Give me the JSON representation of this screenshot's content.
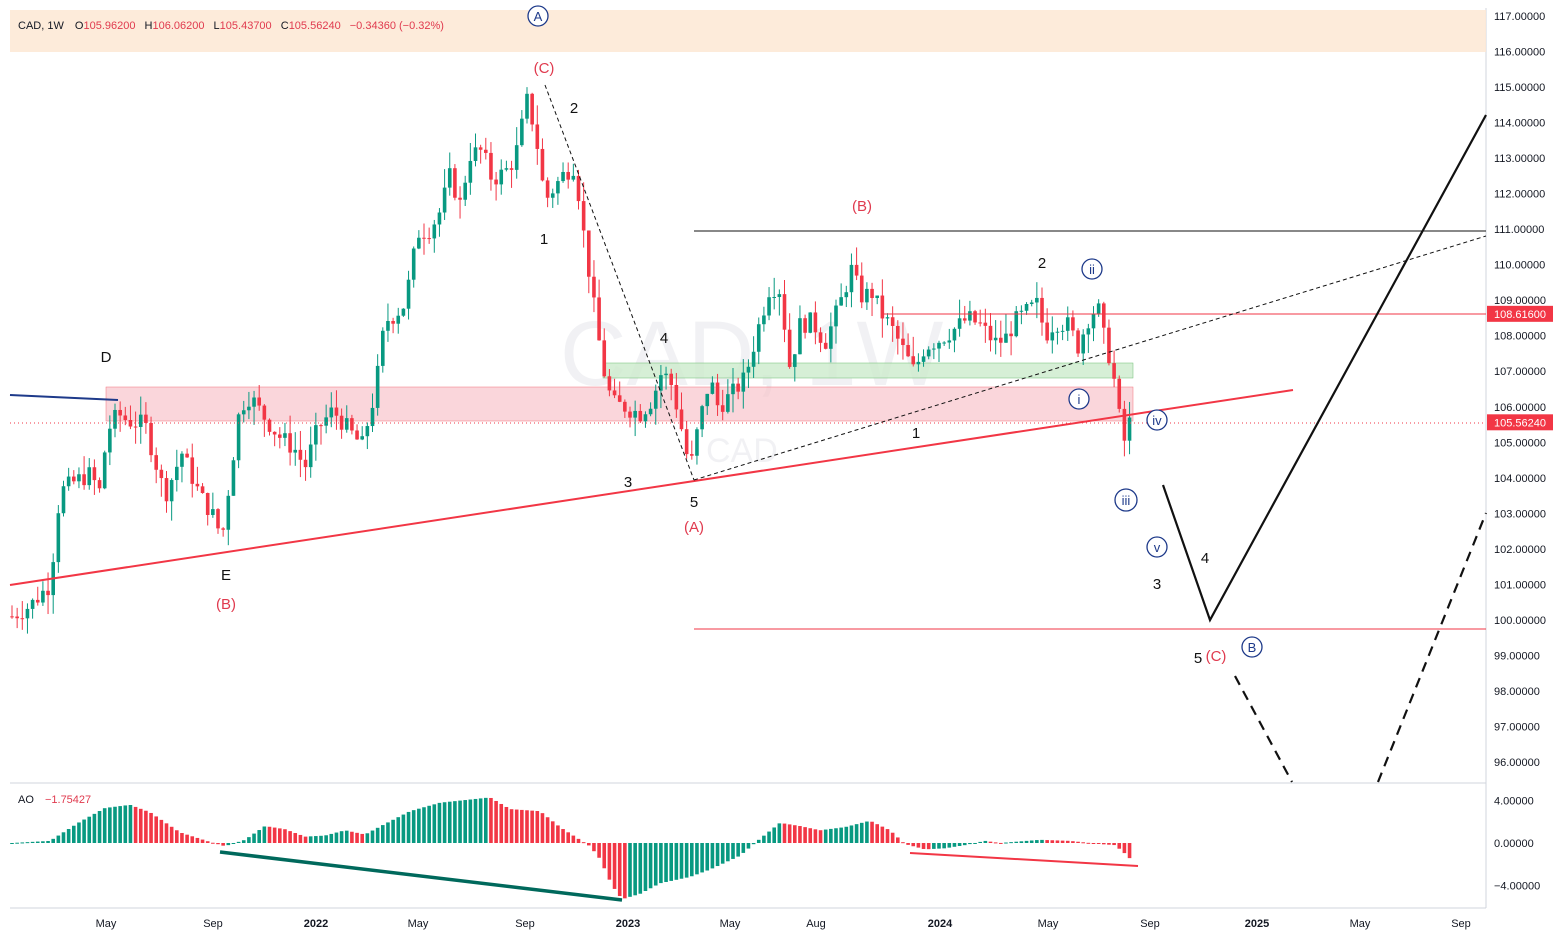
{
  "header": {
    "symbol": "CAD, 1W",
    "o_label": "O",
    "o_value": "105.96200",
    "h_label": "H",
    "h_value": "106.06200",
    "l_label": "L",
    "l_value": "105.43700",
    "c_label": "C",
    "c_value": "105.56240",
    "change": "−0.34360 (−0.32%)"
  },
  "watermark": "CAD, 1W",
  "watermark_small": "CAD",
  "ao": {
    "label": "AO",
    "value": "−1.75427"
  },
  "chart_data": {
    "type": "candlestick",
    "price_axis": {
      "labels": [
        "117.00000",
        "116.00000",
        "115.00000",
        "114.00000",
        "113.00000",
        "112.00000",
        "111.00000",
        "110.00000",
        "109.00000",
        "108.00000",
        "107.00000",
        "106.00000",
        "105.00000",
        "104.00000",
        "103.00000",
        "102.00000",
        "101.00000",
        "100.00000",
        "99.00000",
        "98.00000",
        "97.00000",
        "96.00000"
      ],
      "range": [
        95.6,
        117.3
      ]
    },
    "time_axis": {
      "labels": [
        {
          "text": "May",
          "bold": false
        },
        {
          "text": "Sep",
          "bold": false
        },
        {
          "text": "2022",
          "bold": true
        },
        {
          "text": "May",
          "bold": false
        },
        {
          "text": "Sep",
          "bold": false
        },
        {
          "text": "2023",
          "bold": true
        },
        {
          "text": "May",
          "bold": false
        },
        {
          "text": "Aug",
          "bold": false
        },
        {
          "text": "2024",
          "bold": true
        },
        {
          "text": "May",
          "bold": false
        },
        {
          "text": "Sep",
          "bold": false
        },
        {
          "text": "2025",
          "bold": true
        },
        {
          "text": "May",
          "bold": false
        },
        {
          "text": "Sep",
          "bold": false
        }
      ]
    },
    "price_tags": [
      {
        "value": 108.616,
        "text": "108.61600",
        "color": "#f23645"
      },
      {
        "value": 105.5624,
        "text": "105.56240",
        "color": "#f23645"
      }
    ],
    "ao_axis": {
      "labels": [
        "4.00000",
        "0.00000",
        "−4.00000"
      ],
      "range": [
        -5.6,
        5.0
      ]
    },
    "up_color": "#089981",
    "down_color": "#f23645",
    "wave_labels": [
      {
        "text": "D",
        "color": "black"
      },
      {
        "text": "E",
        "color": "black"
      },
      {
        "text": "(B)",
        "color": "red"
      },
      {
        "text": "(C)",
        "color": "red"
      },
      {
        "text": "A",
        "color": "blue",
        "circled": true
      },
      {
        "text": "1",
        "color": "black"
      },
      {
        "text": "2",
        "color": "black"
      },
      {
        "text": "3",
        "color": "black"
      },
      {
        "text": "4",
        "color": "black"
      },
      {
        "text": "5",
        "color": "black"
      },
      {
        "text": "(A)",
        "color": "red"
      },
      {
        "text": "(B)",
        "color": "red"
      },
      {
        "text": "1",
        "color": "black"
      },
      {
        "text": "2",
        "color": "black"
      },
      {
        "text": "i",
        "color": "blue",
        "circled": true
      },
      {
        "text": "ii",
        "color": "blue",
        "circled": true
      },
      {
        "text": "iii",
        "color": "blue",
        "circled": true
      },
      {
        "text": "iv",
        "color": "blue",
        "circled": true
      },
      {
        "text": "v",
        "color": "blue",
        "circled": true
      },
      {
        "text": "3",
        "color": "black"
      },
      {
        "text": "4",
        "color": "black"
      },
      {
        "text": "5",
        "color": "black"
      },
      {
        "text": "(C)",
        "color": "red"
      },
      {
        "text": "B",
        "color": "blue",
        "circled": true
      }
    ]
  }
}
